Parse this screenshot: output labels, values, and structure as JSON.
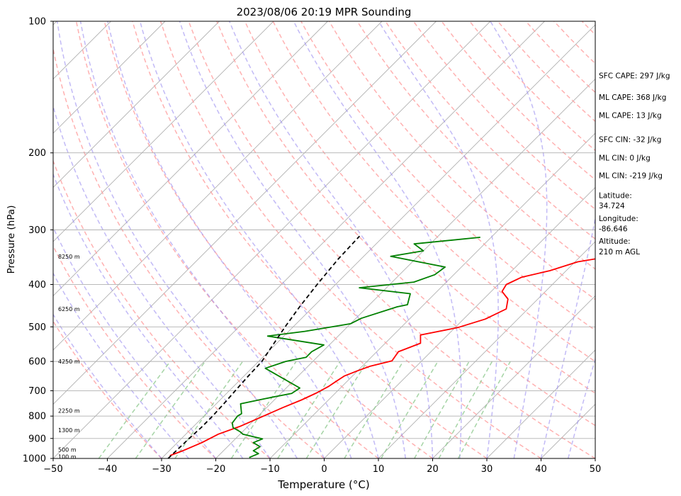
{
  "chart_data": {
    "type": "line",
    "title": "2023/08/06 20:19 MPR Sounding",
    "xlabel": "Temperature (°C)",
    "ylabel": "Pressure (hPa)",
    "xlim": [
      -50,
      50
    ],
    "ylim": [
      1000,
      100
    ],
    "y_scale": "log",
    "skew": true,
    "grid": true,
    "x_ticks": [
      -50,
      -40,
      -30,
      -20,
      -10,
      0,
      10,
      20,
      30,
      40,
      50
    ],
    "y_ticks": [
      100,
      200,
      300,
      400,
      500,
      600,
      700,
      800,
      900,
      1000
    ],
    "colors": {
      "temperature": "#ff0000",
      "dewpoint": "#008000",
      "parcel": "#000000",
      "dry_adiabat": "#ff9e9e",
      "moist_adiabat": "#9a8cf0",
      "mixing_ratio": "#8fc98f",
      "isotherm": "#b0b0b0"
    },
    "height_labels": [
      {
        "p": 345,
        "label": "8250 m"
      },
      {
        "p": 455,
        "label": "6250 m"
      },
      {
        "p": 600,
        "label": "4250 m"
      },
      {
        "p": 778,
        "label": "2250 m"
      },
      {
        "p": 862,
        "label": "1300 m"
      },
      {
        "p": 955,
        "label": "500 m"
      },
      {
        "p": 990,
        "label": "100 m"
      }
    ],
    "annotations": [
      {
        "p": 133,
        "text": "SFC CAPE: 297 J/kg"
      },
      {
        "p": 149,
        "text": "ML CAPE: 368 J/kg"
      },
      {
        "p": 164,
        "text": "ML CAPE: 13 J/kg"
      },
      {
        "p": 186,
        "text": "SFC CIN: -32 J/kg"
      },
      {
        "p": 205,
        "text": "ML CIN: 0 J/kg"
      },
      {
        "p": 225,
        "text": "ML CIN: -219 J/kg"
      },
      {
        "p": 250,
        "text": "Latitude:"
      },
      {
        "p": 264,
        "text": "34.724"
      },
      {
        "p": 282,
        "text": "Longitude:"
      },
      {
        "p": 298,
        "text": "-86.646"
      },
      {
        "p": 318,
        "text": "Altitude:"
      },
      {
        "p": 336,
        "text": "210 m AGL"
      }
    ],
    "series": [
      {
        "key": "temperature",
        "points": [
          [
            310,
            21.6
          ],
          [
            320,
            19.5
          ],
          [
            330,
            16.5
          ],
          [
            342,
            17.0
          ],
          [
            355,
            10.5
          ],
          [
            372,
            7.0
          ],
          [
            385,
            3.0
          ],
          [
            400,
            1.5
          ],
          [
            415,
            2.0
          ],
          [
            432,
            4.5
          ],
          [
            455,
            6.0
          ],
          [
            480,
            4.0
          ],
          [
            502,
            0.5
          ],
          [
            522,
            -5.0
          ],
          [
            545,
            -3.5
          ],
          [
            570,
            -6.0
          ],
          [
            598,
            -5.5
          ],
          [
            615,
            -8.5
          ],
          [
            630,
            -10.0
          ],
          [
            648,
            -11.5
          ],
          [
            665,
            -12.0
          ],
          [
            685,
            -12.5
          ],
          [
            708,
            -13.5
          ],
          [
            735,
            -15.0
          ],
          [
            765,
            -17.0
          ],
          [
            800,
            -19.0
          ],
          [
            845,
            -21.5
          ],
          [
            880,
            -24.0
          ],
          [
            920,
            -25.5
          ],
          [
            960,
            -27.5
          ],
          [
            985,
            -29.0
          ]
        ]
      },
      {
        "key": "dewpoint",
        "points": [
          [
            312,
            -12.0
          ],
          [
            323,
            -23.0
          ],
          [
            335,
            -20.0
          ],
          [
            345,
            -25.0
          ],
          [
            365,
            -13.0
          ],
          [
            380,
            -13.5
          ],
          [
            395,
            -16.0
          ],
          [
            407,
            -25.0
          ],
          [
            420,
            -14.5
          ],
          [
            445,
            -13.0
          ],
          [
            450,
            -14.5
          ],
          [
            478,
            -19.0
          ],
          [
            492,
            -20.0
          ],
          [
            512,
            -27.0
          ],
          [
            525,
            -33.0
          ],
          [
            550,
            -21.0
          ],
          [
            570,
            -22.0
          ],
          [
            587,
            -22.0
          ],
          [
            600,
            -25.0
          ],
          [
            622,
            -27.5
          ],
          [
            690,
            -17.5
          ],
          [
            710,
            -18.0
          ],
          [
            730,
            -22.0
          ],
          [
            750,
            -25.5
          ],
          [
            790,
            -23.5
          ],
          [
            800,
            -23.8
          ],
          [
            830,
            -23.5
          ],
          [
            850,
            -22.5
          ],
          [
            868,
            -20.5
          ],
          [
            880,
            -19.5
          ],
          [
            902,
            -15.0
          ],
          [
            920,
            -16.0
          ],
          [
            940,
            -14.0
          ],
          [
            960,
            -14.5
          ],
          [
            975,
            -13.0
          ],
          [
            995,
            -14.0
          ]
        ]
      },
      {
        "key": "parcel",
        "points": [
          [
            1000,
            -28.8
          ],
          [
            950,
            -28.7
          ],
          [
            900,
            -28.6
          ],
          [
            850,
            -28.4
          ],
          [
            800,
            -28.4
          ],
          [
            750,
            -28.6
          ],
          [
            700,
            -28.9
          ],
          [
            650,
            -29.2
          ],
          [
            600,
            -29.4
          ],
          [
            550,
            -30.4
          ],
          [
            500,
            -31.5
          ],
          [
            450,
            -32.5
          ],
          [
            400,
            -33.4
          ],
          [
            350,
            -34.2
          ],
          [
            310,
            -34.5
          ]
        ]
      }
    ]
  }
}
